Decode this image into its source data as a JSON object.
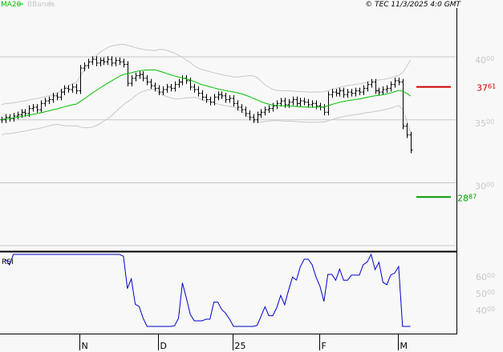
{
  "legend": {
    "ma_label": "MA20",
    "bb_label": "BBands",
    "ma_color": "#00c000",
    "bb_color": "#c8c8c8"
  },
  "copyright": "© TEC 11/3/2025 4:0 GMT",
  "chart_data": {
    "type": "ohlc",
    "price_axis": {
      "ticks": [
        {
          "int": "40",
          "dec": "00",
          "value": 40
        },
        {
          "int": "35",
          "dec": "00",
          "value": 35
        },
        {
          "int": "30",
          "dec": "00",
          "value": 30
        }
      ],
      "grid": true
    },
    "resistance": {
      "int": "37",
      "dec": "61",
      "value": 37.61,
      "color": "#cc0000"
    },
    "support": {
      "int": "28",
      "dec": "87",
      "value": 28.87,
      "color": "#009900"
    },
    "x_ticks": [
      {
        "label": "N",
        "index": 20
      },
      {
        "label": "D",
        "index": 40
      },
      {
        "label": "25",
        "index": 59
      },
      {
        "label": "F",
        "index": 81
      },
      {
        "label": "M",
        "index": 101
      }
    ],
    "close": [
      35.0,
      35.2,
      35.1,
      35.3,
      35.4,
      35.6,
      35.5,
      35.9,
      36.0,
      35.8,
      36.3,
      36.5,
      36.6,
      36.9,
      36.8,
      37.2,
      37.5,
      37.4,
      37.6,
      37.3,
      39.1,
      39.3,
      39.6,
      39.8,
      39.5,
      39.7,
      39.6,
      39.8,
      39.5,
      39.7,
      39.6,
      39.4,
      37.9,
      38.3,
      38.5,
      38.6,
      38.3,
      38.0,
      37.7,
      37.5,
      37.2,
      37.4,
      37.6,
      37.5,
      37.8,
      38.0,
      38.3,
      38.1,
      37.6,
      37.4,
      37.1,
      36.8,
      36.6,
      36.4,
      36.8,
      37.0,
      36.9,
      36.6,
      36.7,
      36.3,
      36.0,
      35.8,
      35.5,
      35.2,
      35.0,
      35.4,
      35.6,
      35.8,
      35.9,
      36.1,
      36.3,
      36.5,
      36.2,
      36.4,
      36.6,
      36.3,
      36.5,
      36.4,
      36.2,
      36.3,
      36.1,
      36.0,
      35.6,
      37.0,
      37.2,
      37.1,
      37.3,
      37.0,
      37.2,
      37.1,
      37.3,
      37.2,
      37.5,
      37.8,
      38.0,
      37.3,
      37.2,
      37.4,
      37.5,
      37.8,
      38.1,
      38.0,
      34.5,
      33.8,
      32.6
    ],
    "ma_period": 20,
    "rsi": {
      "label": "RSI",
      "period": 14,
      "ticks": [
        {
          "int": "60",
          "dec": "00",
          "value": 60
        },
        {
          "int": "50",
          "dec": "00",
          "value": 50
        },
        {
          "int": "40",
          "dec": "00",
          "value": 40
        }
      ],
      "color": "#0000cc"
    }
  }
}
